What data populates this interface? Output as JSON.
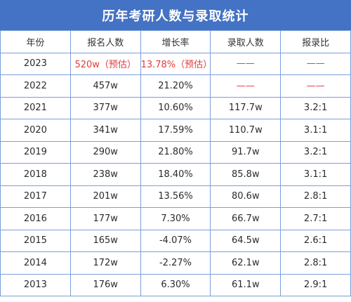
{
  "title": "历年考研人数与录取统计",
  "headers": [
    "年份",
    "报名人数",
    "增长率",
    "录取人数",
    "报录比"
  ],
  "rows": [
    {
      "year": "2023",
      "applicants": "520w（预估）",
      "growth": "13.78%（预估）",
      "admitted": "——",
      "ratio": "——"
    },
    {
      "year": "2022",
      "applicants": "457w",
      "growth": "21.20%",
      "admitted": "——",
      "ratio": "——"
    },
    {
      "year": "2021",
      "applicants": "377w",
      "growth": "10.60%",
      "admitted": "117.7w",
      "ratio": "3.2:1"
    },
    {
      "year": "2020",
      "applicants": "341w",
      "growth": "17.59%",
      "admitted": "110.7w",
      "ratio": "3.1:1"
    },
    {
      "year": "2019",
      "applicants": "290w",
      "growth": "21.80%",
      "admitted": "91.7w",
      "ratio": "3.2:1"
    },
    {
      "year": "2018",
      "applicants": "238w",
      "growth": "18.40%",
      "admitted": "85.8w",
      "ratio": "3.1:1"
    },
    {
      "year": "2017",
      "applicants": "201w",
      "growth": "13.56%",
      "admitted": "80.6w",
      "ratio": "2.8:1"
    },
    {
      "year": "2016",
      "applicants": "177w",
      "growth": "7.30%",
      "admitted": "66.7w",
      "ratio": "2.7:1"
    },
    {
      "year": "2015",
      "applicants": "165w",
      "growth": "-4.07%",
      "admitted": "64.5w",
      "ratio": "2.6:1"
    },
    {
      "year": "2014",
      "applicants": "172w",
      "growth": "-2.27%",
      "admitted": "62.1w",
      "ratio": "2.8:1"
    },
    {
      "year": "2013",
      "applicants": "176w",
      "growth": "6.30%",
      "admitted": "61.1w",
      "ratio": "2.9:1"
    }
  ],
  "colors": {
    "title_bg": "#4472c4",
    "title_text": "#ffffff",
    "grid": "#7b9fd9",
    "highlight": "#e23a3a",
    "text": "#2b2b2b"
  }
}
